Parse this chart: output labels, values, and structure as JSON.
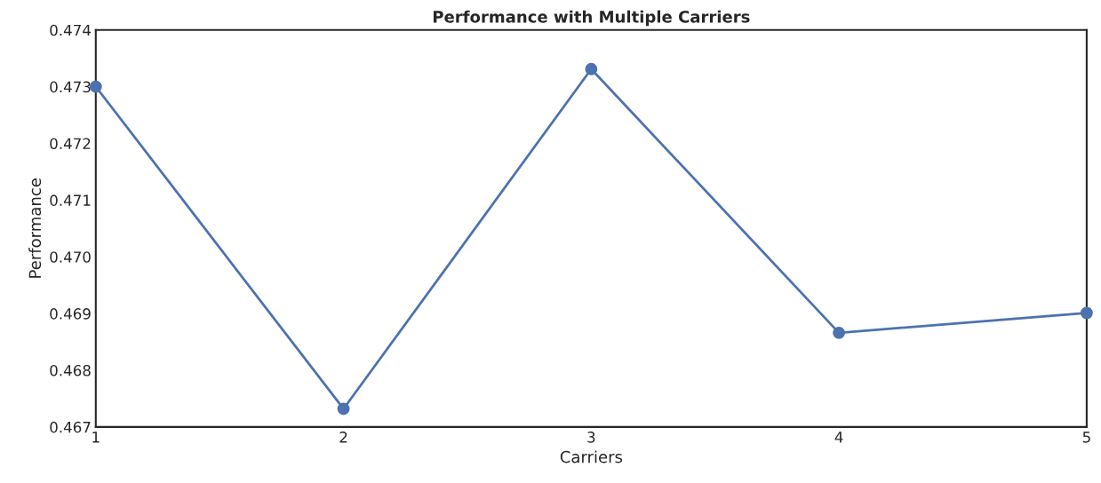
{
  "chart_data": {
    "type": "line",
    "title": "Performance with Multiple Carriers",
    "xlabel": "Carriers",
    "ylabel": "Performance",
    "x": [
      1,
      2,
      3,
      4,
      5
    ],
    "series": [
      {
        "color": "#4c72b0",
        "values": [
          0.473,
          0.46732,
          0.47331,
          0.46866,
          0.46901
        ]
      }
    ],
    "xlim": [
      1,
      5
    ],
    "xticks": [
      1,
      2,
      3,
      4,
      5
    ],
    "ylim": [
      0.467,
      0.474
    ],
    "yticks": [
      {
        "value": 0.467,
        "label": "0.467"
      },
      {
        "value": 0.468,
        "label": "0.468"
      },
      {
        "value": 0.469,
        "label": "0.469"
      },
      {
        "value": 0.47,
        "label": "0.470"
      },
      {
        "value": 0.471,
        "label": "0.471"
      },
      {
        "value": 0.472,
        "label": "0.472"
      },
      {
        "value": 0.473,
        "label": "0.473"
      },
      {
        "value": 0.474,
        "label": "0.474"
      }
    ],
    "grid": false,
    "marker": "circle",
    "line_style": "solid"
  }
}
